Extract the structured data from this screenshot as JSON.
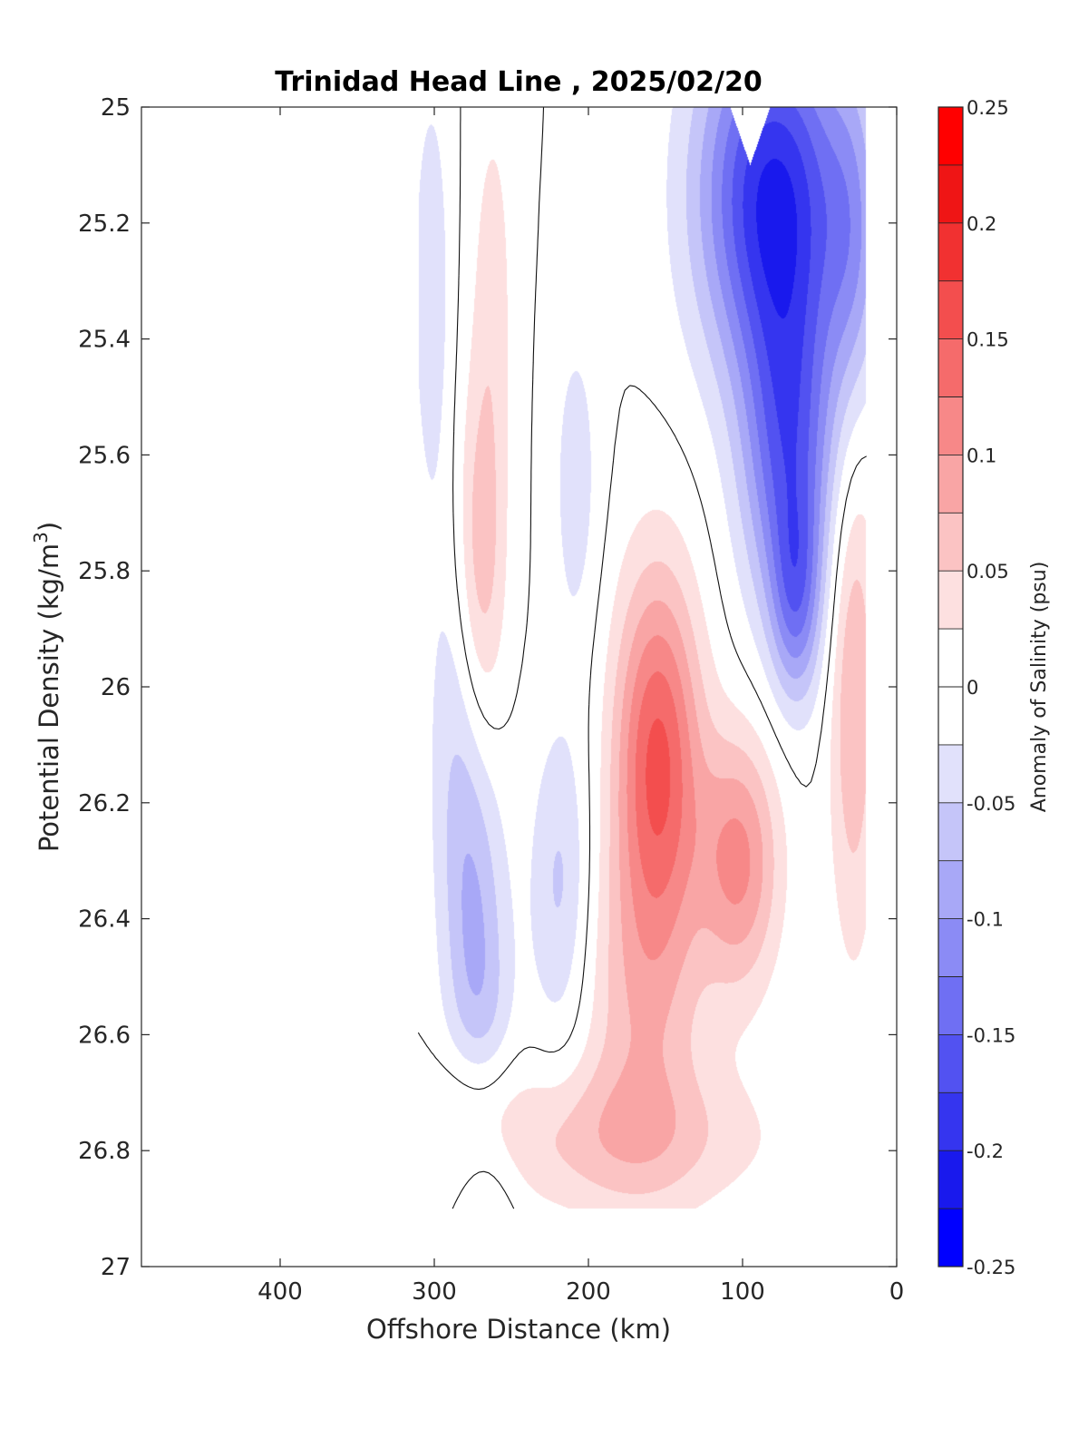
{
  "chart_data": {
    "type": "heatmap",
    "title": "Trinidad Head Line , 2025/02/20",
    "xlabel": "Offshore Distance (km)",
    "ylabel_main": "Potential Density (kg/m",
    "ylabel_sup": "3",
    "ylabel_end": ")",
    "xlim": [
      490,
      0
    ],
    "ylim": [
      25,
      27
    ],
    "y_reversed": true,
    "x_ticks": [
      400,
      300,
      200,
      100,
      0
    ],
    "y_ticks": [
      "25",
      "25.2",
      "25.4",
      "25.6",
      "25.8",
      "26",
      "26.2",
      "26.4",
      "26.6",
      "26.8",
      "27"
    ],
    "y_tick_values": [
      25,
      25.2,
      25.4,
      25.6,
      25.8,
      26,
      26.2,
      26.4,
      26.6,
      26.8,
      27
    ],
    "data_extent": {
      "x": [
        20,
        310
      ],
      "y": [
        25,
        26.9
      ]
    },
    "colorbar": {
      "label": "Anomaly of Salinity (psu)",
      "range": [
        -0.25,
        0.25
      ],
      "step": 0.025,
      "tick_labels": [
        "0.25",
        "0.2",
        "0.15",
        "0.1",
        "0.05",
        "0",
        "-0.05",
        "-0.1",
        "-0.15",
        "-0.2",
        "-0.25"
      ],
      "tick_values": [
        0.25,
        0.2,
        0.15,
        0.1,
        0.05,
        0,
        -0.05,
        -0.1,
        -0.15,
        -0.2,
        -0.25
      ],
      "colors_positive": [
        "#ffffff",
        "#fde0e0",
        "#fbc3c3",
        "#f9a5a5",
        "#f78888",
        "#f56b6b",
        "#f34e4e",
        "#f13131",
        "#ef1515",
        "#ff0000"
      ],
      "colors_negative": [
        "#ffffff",
        "#e1e1fb",
        "#c5c5f9",
        "#a8a8f7",
        "#8b8bf5",
        "#6f6ff3",
        "#5252f1",
        "#3535ef",
        "#1919ed",
        "#0000ff"
      ]
    },
    "features": [
      {
        "name": "offshore negative band",
        "x": [
          310,
          255
        ],
        "y": [
          25.0,
          26.75
        ],
        "peak": -0.08
      },
      {
        "name": "offshore positive core",
        "x": 270,
        "y": 25.8,
        "peak": 0.07
      },
      {
        "name": "mid negative band",
        "x": 215,
        "y": [
          25.5,
          26.6
        ],
        "peak": -0.05
      },
      {
        "name": "deep positive core",
        "x": 155,
        "y": 26.15,
        "peak": 0.15
      },
      {
        "name": "secondary positive core",
        "x": 100,
        "y": 26.3,
        "peak": 0.1
      },
      {
        "name": "deep positive shelf",
        "x": [
          290,
          60
        ],
        "y": [
          26.6,
          26.9
        ],
        "peak": 0.05
      },
      {
        "name": "nearshore positive",
        "x": 25,
        "y": [
          25.7,
          26.6
        ],
        "peak": 0.07
      },
      {
        "name": "nearshore negative core",
        "x": [
          140,
          20
        ],
        "y": [
          25.0,
          25.95
        ],
        "peak": -0.19
      }
    ]
  }
}
